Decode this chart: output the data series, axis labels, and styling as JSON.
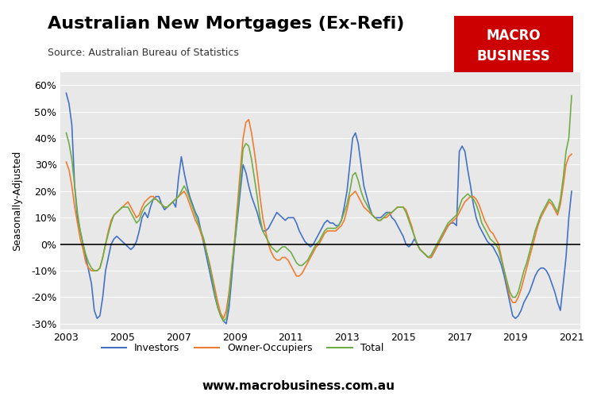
{
  "title": "Australian New Mortgages (Ex-Refi)",
  "source": "Source: Australian Bureau of Statistics",
  "ylabel": "Seasonally-Adjusted",
  "website": "www.macrobusiness.com.au",
  "ylim": [
    -0.32,
    0.65
  ],
  "yticks": [
    -0.3,
    -0.2,
    -0.1,
    0.0,
    0.1,
    0.2,
    0.3,
    0.4,
    0.5,
    0.6
  ],
  "bg_color": "#e8e8e8",
  "colors": {
    "investors": "#4472C4",
    "owner_occupiers": "#ED7D31",
    "total": "#70AD47"
  },
  "legend_labels": [
    "Investors",
    "Owner-Occupiers",
    "Total"
  ],
  "macro_box": {
    "color": "#CC0000",
    "text_color": "#FFFFFF"
  },
  "dates_investors": [
    2003.0,
    2003.1,
    2003.2,
    2003.3,
    2003.4,
    2003.5,
    2003.6,
    2003.7,
    2003.8,
    2003.9,
    2004.0,
    2004.1,
    2004.2,
    2004.3,
    2004.4,
    2004.5,
    2004.6,
    2004.7,
    2004.8,
    2004.9,
    2005.0,
    2005.1,
    2005.2,
    2005.3,
    2005.4,
    2005.5,
    2005.6,
    2005.7,
    2005.8,
    2005.9,
    2006.0,
    2006.1,
    2006.2,
    2006.3,
    2006.4,
    2006.5,
    2006.6,
    2006.7,
    2006.8,
    2006.9,
    2007.0,
    2007.1,
    2007.2,
    2007.3,
    2007.4,
    2007.5,
    2007.6,
    2007.7,
    2007.8,
    2007.9,
    2008.0,
    2008.1,
    2008.2,
    2008.3,
    2008.4,
    2008.5,
    2008.6,
    2008.7,
    2008.8,
    2008.9,
    2009.0,
    2009.1,
    2009.2,
    2009.3,
    2009.4,
    2009.5,
    2009.6,
    2009.7,
    2009.8,
    2009.9,
    2010.0,
    2010.1,
    2010.2,
    2010.3,
    2010.4,
    2010.5,
    2010.6,
    2010.7,
    2010.8,
    2010.9,
    2011.0,
    2011.1,
    2011.2,
    2011.3,
    2011.4,
    2011.5,
    2011.6,
    2011.7,
    2011.8,
    2011.9,
    2012.0,
    2012.1,
    2012.2,
    2012.3,
    2012.4,
    2012.5,
    2012.6,
    2012.7,
    2012.8,
    2012.9,
    2013.0,
    2013.1,
    2013.2,
    2013.3,
    2013.4,
    2013.5,
    2013.6,
    2013.7,
    2013.8,
    2013.9,
    2014.0,
    2014.1,
    2014.2,
    2014.3,
    2014.4,
    2014.5,
    2014.6,
    2014.7,
    2014.8,
    2014.9,
    2015.0,
    2015.1,
    2015.2,
    2015.3,
    2015.4,
    2015.5,
    2015.6,
    2015.7,
    2015.8,
    2015.9,
    2016.0,
    2016.1,
    2016.2,
    2016.3,
    2016.4,
    2016.5,
    2016.6,
    2016.7,
    2016.8,
    2016.9,
    2017.0,
    2017.1,
    2017.2,
    2017.3,
    2017.4,
    2017.5,
    2017.6,
    2017.7,
    2017.8,
    2017.9,
    2018.0,
    2018.1,
    2018.2,
    2018.3,
    2018.4,
    2018.5,
    2018.6,
    2018.7,
    2018.8,
    2018.9,
    2019.0,
    2019.1,
    2019.2,
    2019.3,
    2019.4,
    2019.5,
    2019.6,
    2019.7,
    2019.8,
    2019.9,
    2020.0,
    2020.1,
    2020.2,
    2020.3,
    2020.4,
    2020.5,
    2020.6,
    2020.7,
    2020.8,
    2020.9,
    2021.0
  ],
  "investors": [
    0.57,
    0.53,
    0.45,
    0.22,
    0.1,
    0.05,
    0.0,
    -0.05,
    -0.1,
    -0.15,
    -0.25,
    -0.28,
    -0.27,
    -0.2,
    -0.1,
    -0.05,
    0.0,
    0.02,
    0.03,
    0.02,
    0.01,
    0.0,
    -0.01,
    -0.02,
    -0.01,
    0.01,
    0.05,
    0.1,
    0.12,
    0.1,
    0.14,
    0.17,
    0.18,
    0.18,
    0.15,
    0.13,
    0.14,
    0.15,
    0.16,
    0.14,
    0.25,
    0.33,
    0.27,
    0.22,
    0.18,
    0.15,
    0.12,
    0.1,
    0.05,
    0.0,
    -0.05,
    -0.1,
    -0.15,
    -0.2,
    -0.24,
    -0.27,
    -0.29,
    -0.3,
    -0.24,
    -0.12,
    0.0,
    0.1,
    0.2,
    0.3,
    0.27,
    0.22,
    0.18,
    0.15,
    0.12,
    0.08,
    0.05,
    0.05,
    0.06,
    0.08,
    0.1,
    0.12,
    0.11,
    0.1,
    0.09,
    0.1,
    0.1,
    0.1,
    0.08,
    0.05,
    0.03,
    0.01,
    0.0,
    -0.01,
    0.0,
    0.02,
    0.04,
    0.06,
    0.08,
    0.09,
    0.08,
    0.08,
    0.07,
    0.07,
    0.09,
    0.14,
    0.2,
    0.3,
    0.4,
    0.42,
    0.38,
    0.3,
    0.22,
    0.18,
    0.14,
    0.11,
    0.1,
    0.1,
    0.1,
    0.11,
    0.12,
    0.12,
    0.1,
    0.09,
    0.07,
    0.05,
    0.03,
    0.0,
    -0.01,
    0.0,
    0.02,
    0.0,
    -0.02,
    -0.03,
    -0.04,
    -0.05,
    -0.05,
    -0.03,
    -0.01,
    0.01,
    0.03,
    0.05,
    0.07,
    0.08,
    0.08,
    0.07,
    0.35,
    0.37,
    0.35,
    0.28,
    0.22,
    0.15,
    0.1,
    0.07,
    0.05,
    0.03,
    0.01,
    0.0,
    -0.01,
    -0.03,
    -0.05,
    -0.08,
    -0.12,
    -0.17,
    -0.22,
    -0.27,
    -0.28,
    -0.27,
    -0.25,
    -0.22,
    -0.2,
    -0.18,
    -0.15,
    -0.12,
    -0.1,
    -0.09,
    -0.09,
    -0.1,
    -0.12,
    -0.15,
    -0.18,
    -0.22,
    -0.25,
    -0.15,
    -0.05,
    0.1,
    0.2
  ],
  "owner_occupiers": [
    0.31,
    0.28,
    0.22,
    0.14,
    0.08,
    0.02,
    -0.02,
    -0.07,
    -0.09,
    -0.1,
    -0.1,
    -0.1,
    -0.09,
    -0.05,
    0.0,
    0.05,
    0.09,
    0.11,
    0.12,
    0.13,
    0.14,
    0.15,
    0.16,
    0.14,
    0.12,
    0.1,
    0.11,
    0.14,
    0.16,
    0.17,
    0.18,
    0.18,
    0.17,
    0.16,
    0.15,
    0.14,
    0.14,
    0.15,
    0.16,
    0.17,
    0.18,
    0.19,
    0.2,
    0.18,
    0.15,
    0.12,
    0.09,
    0.07,
    0.04,
    0.01,
    -0.03,
    -0.07,
    -0.12,
    -0.17,
    -0.22,
    -0.26,
    -0.28,
    -0.25,
    -0.18,
    -0.08,
    0.02,
    0.15,
    0.28,
    0.4,
    0.46,
    0.47,
    0.42,
    0.35,
    0.27,
    0.18,
    0.1,
    0.05,
    0.0,
    -0.03,
    -0.05,
    -0.06,
    -0.06,
    -0.05,
    -0.05,
    -0.06,
    -0.08,
    -0.1,
    -0.12,
    -0.12,
    -0.11,
    -0.09,
    -0.07,
    -0.05,
    -0.03,
    -0.01,
    0.0,
    0.02,
    0.04,
    0.05,
    0.05,
    0.05,
    0.05,
    0.06,
    0.07,
    0.09,
    0.13,
    0.18,
    0.19,
    0.2,
    0.18,
    0.16,
    0.14,
    0.13,
    0.12,
    0.11,
    0.1,
    0.09,
    0.09,
    0.1,
    0.1,
    0.11,
    0.12,
    0.13,
    0.14,
    0.14,
    0.14,
    0.13,
    0.1,
    0.07,
    0.03,
    0.0,
    -0.02,
    -0.03,
    -0.04,
    -0.05,
    -0.05,
    -0.03,
    -0.01,
    0.01,
    0.03,
    0.05,
    0.07,
    0.08,
    0.09,
    0.1,
    0.12,
    0.14,
    0.16,
    0.17,
    0.18,
    0.18,
    0.17,
    0.15,
    0.12,
    0.09,
    0.07,
    0.05,
    0.04,
    0.02,
    0.0,
    -0.05,
    -0.1,
    -0.15,
    -0.2,
    -0.22,
    -0.22,
    -0.2,
    -0.17,
    -0.13,
    -0.09,
    -0.05,
    -0.01,
    0.03,
    0.07,
    0.1,
    0.12,
    0.14,
    0.16,
    0.15,
    0.13,
    0.11,
    0.15,
    0.22,
    0.3,
    0.33,
    0.34
  ],
  "total": [
    0.42,
    0.38,
    0.32,
    0.22,
    0.12,
    0.05,
    0.0,
    -0.04,
    -0.07,
    -0.09,
    -0.1,
    -0.1,
    -0.09,
    -0.05,
    0.0,
    0.04,
    0.08,
    0.11,
    0.12,
    0.13,
    0.14,
    0.14,
    0.14,
    0.12,
    0.1,
    0.08,
    0.09,
    0.12,
    0.14,
    0.15,
    0.16,
    0.17,
    0.17,
    0.16,
    0.15,
    0.14,
    0.14,
    0.15,
    0.16,
    0.17,
    0.18,
    0.2,
    0.22,
    0.2,
    0.17,
    0.14,
    0.11,
    0.08,
    0.05,
    0.02,
    -0.03,
    -0.08,
    -0.13,
    -0.19,
    -0.24,
    -0.27,
    -0.29,
    -0.28,
    -0.2,
    -0.09,
    0.01,
    0.12,
    0.24,
    0.36,
    0.38,
    0.37,
    0.32,
    0.25,
    0.18,
    0.1,
    0.05,
    0.03,
    0.01,
    -0.01,
    -0.02,
    -0.03,
    -0.02,
    -0.01,
    -0.01,
    -0.02,
    -0.03,
    -0.05,
    -0.07,
    -0.08,
    -0.08,
    -0.07,
    -0.06,
    -0.04,
    -0.02,
    0.0,
    0.01,
    0.03,
    0.05,
    0.06,
    0.06,
    0.06,
    0.06,
    0.07,
    0.09,
    0.12,
    0.15,
    0.2,
    0.26,
    0.27,
    0.24,
    0.2,
    0.17,
    0.15,
    0.13,
    0.11,
    0.1,
    0.09,
    0.09,
    0.1,
    0.11,
    0.12,
    0.12,
    0.13,
    0.14,
    0.14,
    0.14,
    0.12,
    0.09,
    0.06,
    0.03,
    0.0,
    -0.02,
    -0.03,
    -0.04,
    -0.05,
    -0.04,
    -0.02,
    0.0,
    0.02,
    0.04,
    0.06,
    0.08,
    0.09,
    0.1,
    0.11,
    0.14,
    0.17,
    0.18,
    0.19,
    0.18,
    0.17,
    0.15,
    0.12,
    0.08,
    0.06,
    0.04,
    0.02,
    0.01,
    0.0,
    -0.02,
    -0.06,
    -0.1,
    -0.14,
    -0.18,
    -0.2,
    -0.2,
    -0.18,
    -0.14,
    -0.1,
    -0.07,
    -0.03,
    0.01,
    0.05,
    0.08,
    0.11,
    0.13,
    0.15,
    0.17,
    0.16,
    0.14,
    0.12,
    0.17,
    0.25,
    0.35,
    0.4,
    0.56
  ]
}
